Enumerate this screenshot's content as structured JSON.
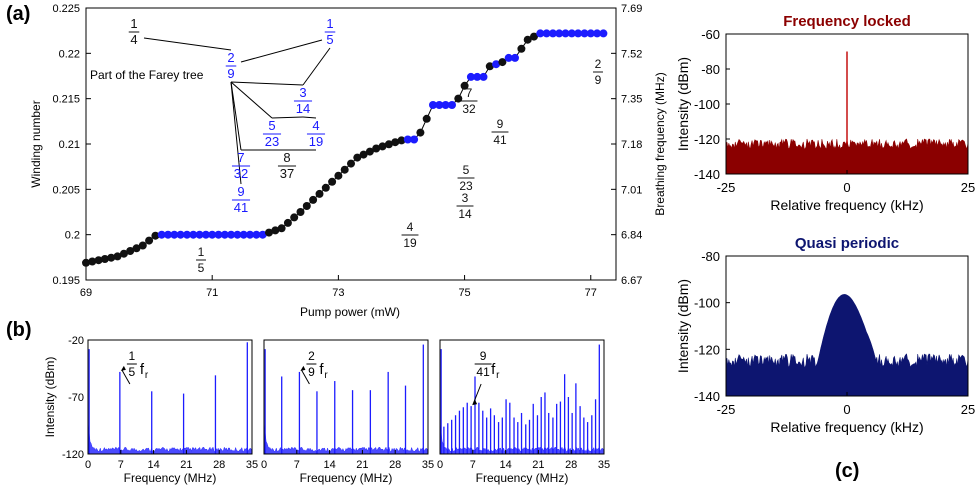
{
  "panel_labels": {
    "a": "(a)",
    "b": "(b)",
    "c": "(c)"
  },
  "colors": {
    "black": "#111111",
    "blue": "#1c1cff",
    "dark_red": "#8b0000",
    "navy": "#0d1570",
    "farey_blue": "#1a1aff"
  },
  "chart_data": [
    {
      "id": "a",
      "type": "scatter",
      "xlabel": "Pump power (mW)",
      "ylabel": "Winding number",
      "y2label": "Breathing frequency (MHz)",
      "xlim": [
        69,
        77.4
      ],
      "ylim": [
        0.195,
        0.225
      ],
      "xticks": [
        "69",
        "71",
        "73",
        "75",
        "77"
      ],
      "yticks": [
        "0.195",
        "0.2",
        "0.205",
        "0.21",
        "0.215",
        "0.22",
        "0.225"
      ],
      "y2ticks": [
        "6.67",
        "6.84",
        "7.01",
        "7.18",
        "7.35",
        "7.52",
        "7.69"
      ],
      "x_range_points": [
        69.0,
        77.0
      ],
      "plateaus": [
        {
          "fraction_num": "1",
          "fraction_den": "5",
          "value": 0.2,
          "x_start": 70.12,
          "x_end": 71.8
        },
        {
          "fraction_num": "4",
          "fraction_den": "19",
          "value": 0.2105,
          "x_start": 74.05,
          "x_end": 74.25
        },
        {
          "fraction_num": "3",
          "fraction_den": "14",
          "value": 0.2143,
          "x_start": 74.5,
          "x_end": 74.85
        },
        {
          "fraction_num": "5",
          "fraction_den": "23",
          "value": 0.2174,
          "x_start": 75.07,
          "x_end": 75.3
        },
        {
          "fraction_num": "7",
          "fraction_den": "32",
          "value": 0.2188,
          "x_start": 75.42,
          "x_end": 75.55
        },
        {
          "fraction_num": "9",
          "fraction_den": "41",
          "value": 0.2195,
          "x_start": 75.7,
          "x_end": 75.8
        },
        {
          "fraction_num": "2",
          "fraction_den": "9",
          "value": 0.2222,
          "x_start": 76.2,
          "x_end": 77.25
        }
      ],
      "curve": {
        "x": [
          69.0,
          69.5,
          69.9,
          70.12,
          71.8,
          72.1,
          72.4,
          72.7,
          73.0,
          73.3,
          73.6,
          73.9,
          74.05,
          74.25,
          74.5,
          74.85,
          75.07,
          75.3,
          75.42,
          75.55,
          75.7,
          75.8,
          76.0,
          76.2,
          77.25
        ],
        "y": [
          0.1969,
          0.1976,
          0.1988,
          0.2,
          0.2,
          0.2007,
          0.2025,
          0.2045,
          0.2065,
          0.2085,
          0.2095,
          0.2102,
          0.2105,
          0.2105,
          0.2143,
          0.2143,
          0.2174,
          0.2174,
          0.2188,
          0.2188,
          0.2195,
          0.2195,
          0.2215,
          0.2222,
          0.2222
        ]
      },
      "farey_tree": {
        "title": "Part of the Farey tree",
        "nodes": [
          {
            "id": "1/4",
            "num": "1",
            "den": "4",
            "blue": false
          },
          {
            "id": "1/5",
            "num": "1",
            "den": "5",
            "blue": true
          },
          {
            "id": "2/9",
            "num": "2",
            "den": "9",
            "blue": true
          },
          {
            "id": "3/14",
            "num": "3",
            "den": "14",
            "blue": true
          },
          {
            "id": "5/23",
            "num": "5",
            "den": "23",
            "blue": true
          },
          {
            "id": "4/19",
            "num": "4",
            "den": "19",
            "blue": true
          },
          {
            "id": "7/32",
            "num": "7",
            "den": "32",
            "blue": true
          },
          {
            "id": "8/37",
            "num": "8",
            "den": "37",
            "blue": false
          },
          {
            "id": "9/41",
            "num": "9",
            "den": "41",
            "blue": true
          }
        ],
        "edges": [
          [
            "1/4",
            "2/9"
          ],
          [
            "1/5",
            "2/9"
          ],
          [
            "1/5",
            "3/14"
          ],
          [
            "2/9",
            "3/14"
          ],
          [
            "2/9",
            "5/23"
          ],
          [
            "2/9",
            "7/32"
          ],
          [
            "2/9",
            "9/41"
          ],
          [
            "3/14",
            "5/23"
          ],
          [
            "3/14",
            "4/19"
          ],
          [
            "5/23",
            "7/32"
          ],
          [
            "5/23",
            "8/37"
          ],
          [
            "4/19",
            "8/37"
          ]
        ]
      }
    },
    {
      "id": "b1",
      "type": "line",
      "xlabel": "Frequency (MHz)",
      "ylabel": "Intensity (dBm)",
      "xlim": [
        0,
        35
      ],
      "ylim": [
        -120,
        -20
      ],
      "xticks": [
        "0",
        "7",
        "14",
        "21",
        "28",
        "35"
      ],
      "yticks": [
        "-120",
        "-70",
        "-20"
      ],
      "annotation": {
        "num": "1",
        "den": "5",
        "suffix": "f",
        "sub": "r"
      },
      "peaks": [
        {
          "x": 6.8,
          "y": -48
        },
        {
          "x": 13.6,
          "y": -65
        },
        {
          "x": 20.4,
          "y": -67
        },
        {
          "x": 27.2,
          "y": -51
        },
        {
          "x": 34.0,
          "y": -22
        }
      ]
    },
    {
      "id": "b2",
      "type": "line",
      "xlabel": "Frequency (MHz)",
      "xlim": [
        0,
        35
      ],
      "ylim": [
        -120,
        -20
      ],
      "xticks": [
        "0",
        "7",
        "14",
        "21",
        "28",
        "35"
      ],
      "annotation": {
        "num": "2",
        "den": "9",
        "suffix": "f",
        "sub": "r"
      },
      "peaks": [
        {
          "x": 3.78,
          "y": -52
        },
        {
          "x": 7.56,
          "y": -48
        },
        {
          "x": 11.3,
          "y": -65
        },
        {
          "x": 15.1,
          "y": -56
        },
        {
          "x": 18.9,
          "y": -64
        },
        {
          "x": 22.7,
          "y": -64
        },
        {
          "x": 26.5,
          "y": -48
        },
        {
          "x": 30.2,
          "y": -60
        },
        {
          "x": 34.0,
          "y": -24
        }
      ]
    },
    {
      "id": "b3",
      "type": "line",
      "xlabel": "Frequency (MHz)",
      "xlim": [
        0,
        35
      ],
      "ylim": [
        -120,
        -20
      ],
      "xticks": [
        "0",
        "7",
        "14",
        "21",
        "28",
        "35"
      ],
      "annotation": {
        "num": "9",
        "den": "41",
        "suffix": "f",
        "sub": "r"
      },
      "peaks": [
        {
          "x": 0.83,
          "y": -96
        },
        {
          "x": 1.66,
          "y": -93
        },
        {
          "x": 2.49,
          "y": -90
        },
        {
          "x": 3.32,
          "y": -86
        },
        {
          "x": 4.15,
          "y": -82
        },
        {
          "x": 4.98,
          "y": -79
        },
        {
          "x": 5.81,
          "y": -75
        },
        {
          "x": 6.64,
          "y": -78
        },
        {
          "x": 7.47,
          "y": -52
        },
        {
          "x": 8.3,
          "y": -75
        },
        {
          "x": 9.13,
          "y": -82
        },
        {
          "x": 9.96,
          "y": -88
        },
        {
          "x": 10.8,
          "y": -80
        },
        {
          "x": 11.6,
          "y": -86
        },
        {
          "x": 12.5,
          "y": -92
        },
        {
          "x": 13.3,
          "y": -88
        },
        {
          "x": 14.1,
          "y": -72
        },
        {
          "x": 14.9,
          "y": -75
        },
        {
          "x": 15.8,
          "y": -88
        },
        {
          "x": 16.6,
          "y": -92
        },
        {
          "x": 17.4,
          "y": -84
        },
        {
          "x": 18.3,
          "y": -94
        },
        {
          "x": 19.1,
          "y": -90
        },
        {
          "x": 19.9,
          "y": -76
        },
        {
          "x": 20.8,
          "y": -86
        },
        {
          "x": 21.6,
          "y": -70
        },
        {
          "x": 22.4,
          "y": -66
        },
        {
          "x": 23.2,
          "y": -84
        },
        {
          "x": 24.1,
          "y": -88
        },
        {
          "x": 24.9,
          "y": -76
        },
        {
          "x": 25.7,
          "y": -74
        },
        {
          "x": 26.6,
          "y": -50
        },
        {
          "x": 27.4,
          "y": -70
        },
        {
          "x": 28.2,
          "y": -84
        },
        {
          "x": 29.0,
          "y": -58
        },
        {
          "x": 29.9,
          "y": -78
        },
        {
          "x": 30.7,
          "y": -88
        },
        {
          "x": 31.5,
          "y": -92
        },
        {
          "x": 32.4,
          "y": -86
        },
        {
          "x": 33.2,
          "y": -72
        },
        {
          "x": 34.0,
          "y": -24
        }
      ]
    },
    {
      "id": "c1",
      "type": "line",
      "title": "Frequency locked",
      "xlabel": "Relative frequency (kHz)",
      "ylabel": "Intensity (dBm)",
      "xlim": [
        -25,
        25
      ],
      "ylim": [
        -140,
        -60
      ],
      "xticks": [
        "-25",
        "0",
        "25"
      ],
      "yticks": [
        "-60",
        "-80",
        "-100",
        "-120",
        "-140"
      ],
      "noise_floor": -123,
      "peak": {
        "x": 0,
        "y": -70
      }
    },
    {
      "id": "c2",
      "type": "line",
      "title": "Quasi periodic",
      "xlabel": "Relative frequency (kHz)",
      "ylabel": "Intensity (dBm)",
      "xlim": [
        -25,
        25
      ],
      "ylim": [
        -140,
        -80
      ],
      "xticks": [
        "-25",
        "0",
        "25"
      ],
      "yticks": [
        "-80",
        "-100",
        "-120",
        "-140"
      ],
      "noise_floor": -125,
      "hump": {
        "x_start": -6,
        "x_end": 6,
        "peak": -95
      }
    }
  ]
}
